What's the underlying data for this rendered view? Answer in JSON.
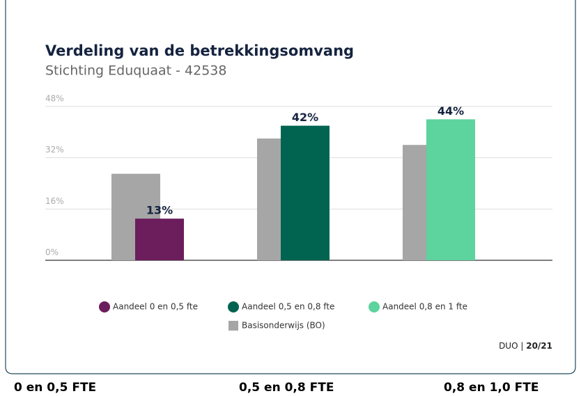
{
  "chart_data": {
    "type": "bar",
    "title": "Verdeling van de betrekkingsomvang",
    "subtitle": "Stichting Eduquaat - 42538",
    "categories": [
      null,
      null,
      null
    ],
    "series": [
      {
        "name": "Aandeel 0 en 0,5 fte",
        "color": "#6b1d5c",
        "values": [
          13,
          null,
          null
        ],
        "value_labels": [
          "13%",
          null,
          null
        ]
      },
      {
        "name": "Aandeel 0,5 en 0,8 fte",
        "color": "#006450",
        "values": [
          null,
          42,
          null
        ],
        "value_labels": [
          null,
          "42%",
          null
        ]
      },
      {
        "name": "Aandeel 0,8 en 1 fte",
        "color": "#5dd39e",
        "values": [
          null,
          null,
          44
        ],
        "value_labels": [
          null,
          null,
          "44%"
        ]
      },
      {
        "name": "Basisonderwijs (BO)",
        "color": "#a6a6a6",
        "values": [
          27,
          38,
          36
        ]
      }
    ],
    "ylim": [
      0,
      48
    ],
    "yticks": [
      {
        "value": 0,
        "label": "0%"
      },
      {
        "value": 16,
        "label": "16%"
      },
      {
        "value": 32,
        "label": "32%"
      },
      {
        "value": 48,
        "label": "48%"
      }
    ],
    "grid": true,
    "source": "DUO |",
    "period": "20/21"
  },
  "captions": [
    "0 en 0,5 FTE",
    "0,5 en 0,8 FTE",
    "0,8 en 1,0 FTE"
  ]
}
